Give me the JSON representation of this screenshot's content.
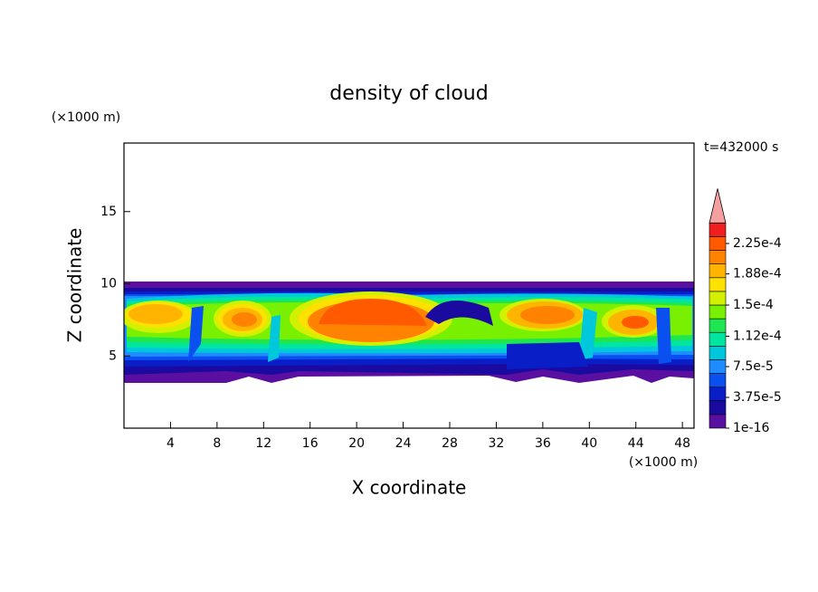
{
  "chart_data": {
    "type": "contour",
    "title": "density of cloud",
    "xlabel": "X coordinate",
    "ylabel": "Z coordinate",
    "x_unit": "(×1000 m)",
    "y_unit": "(×1000 m)",
    "annotation": "t=432000 s",
    "xlim": [
      0,
      49
    ],
    "ylim": [
      0,
      19.75
    ],
    "xticks": [
      4,
      8,
      12,
      16,
      20,
      24,
      28,
      32,
      36,
      40,
      44,
      48
    ],
    "yticks": [
      5,
      10,
      15
    ],
    "colorbar": {
      "lim": [
        1e-16,
        0.00025
      ],
      "colors": [
        "#5a0fa0",
        "#1a0aa0",
        "#0a1ec8",
        "#0a50f0",
        "#1e8cff",
        "#00c8dc",
        "#00e6a0",
        "#1ee650",
        "#78f000",
        "#d2f000",
        "#ffe100",
        "#ffb400",
        "#ff8200",
        "#ff5a00",
        "#f01e1e"
      ],
      "ticks": [
        1e-16,
        {
          "value": 3.75e-05,
          "label": "3.75e-5"
        },
        {
          "value": 7.5e-05,
          "label": "7.5e-5"
        },
        {
          "value": 0.000112,
          "label": "1.12e-4"
        },
        {
          "value": 0.00015,
          "label": "1.5e-4"
        },
        {
          "value": 0.000188,
          "label": "1.88e-4"
        },
        {
          "value": 0.000225,
          "label": "2.25e-4"
        }
      ],
      "extend_color": "#f5a0a0"
    }
  }
}
